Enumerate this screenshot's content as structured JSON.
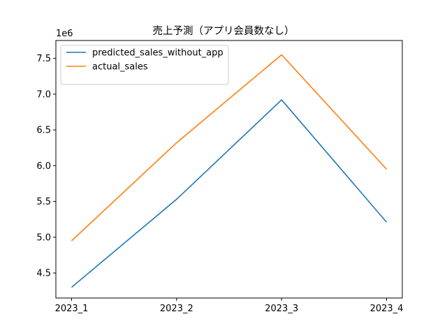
{
  "chart_data": {
    "type": "line",
    "title": "売上予測（アプリ会員数なし）",
    "xlabel": "",
    "ylabel": "",
    "y_offset_label": "1e6",
    "categories": [
      "2023_1",
      "2023_2",
      "2023_3",
      "2023_4"
    ],
    "ylim": [
      4.15,
      7.75
    ],
    "yticks": [
      4.5,
      5.0,
      5.5,
      6.0,
      6.5,
      7.0,
      7.5
    ],
    "ytick_labels": [
      "4.5",
      "5.0",
      "5.5",
      "6.0",
      "6.5",
      "7.0",
      "7.5"
    ],
    "grid": false,
    "legend_position": "top-left",
    "series": [
      {
        "name": "predicted_sales_without_app",
        "color": "#1f77b4",
        "values": [
          4.3,
          5.53,
          6.92,
          5.21
        ]
      },
      {
        "name": "actual_sales",
        "color": "#ff7f0e",
        "values": [
          4.95,
          6.32,
          7.55,
          5.95
        ]
      }
    ]
  }
}
